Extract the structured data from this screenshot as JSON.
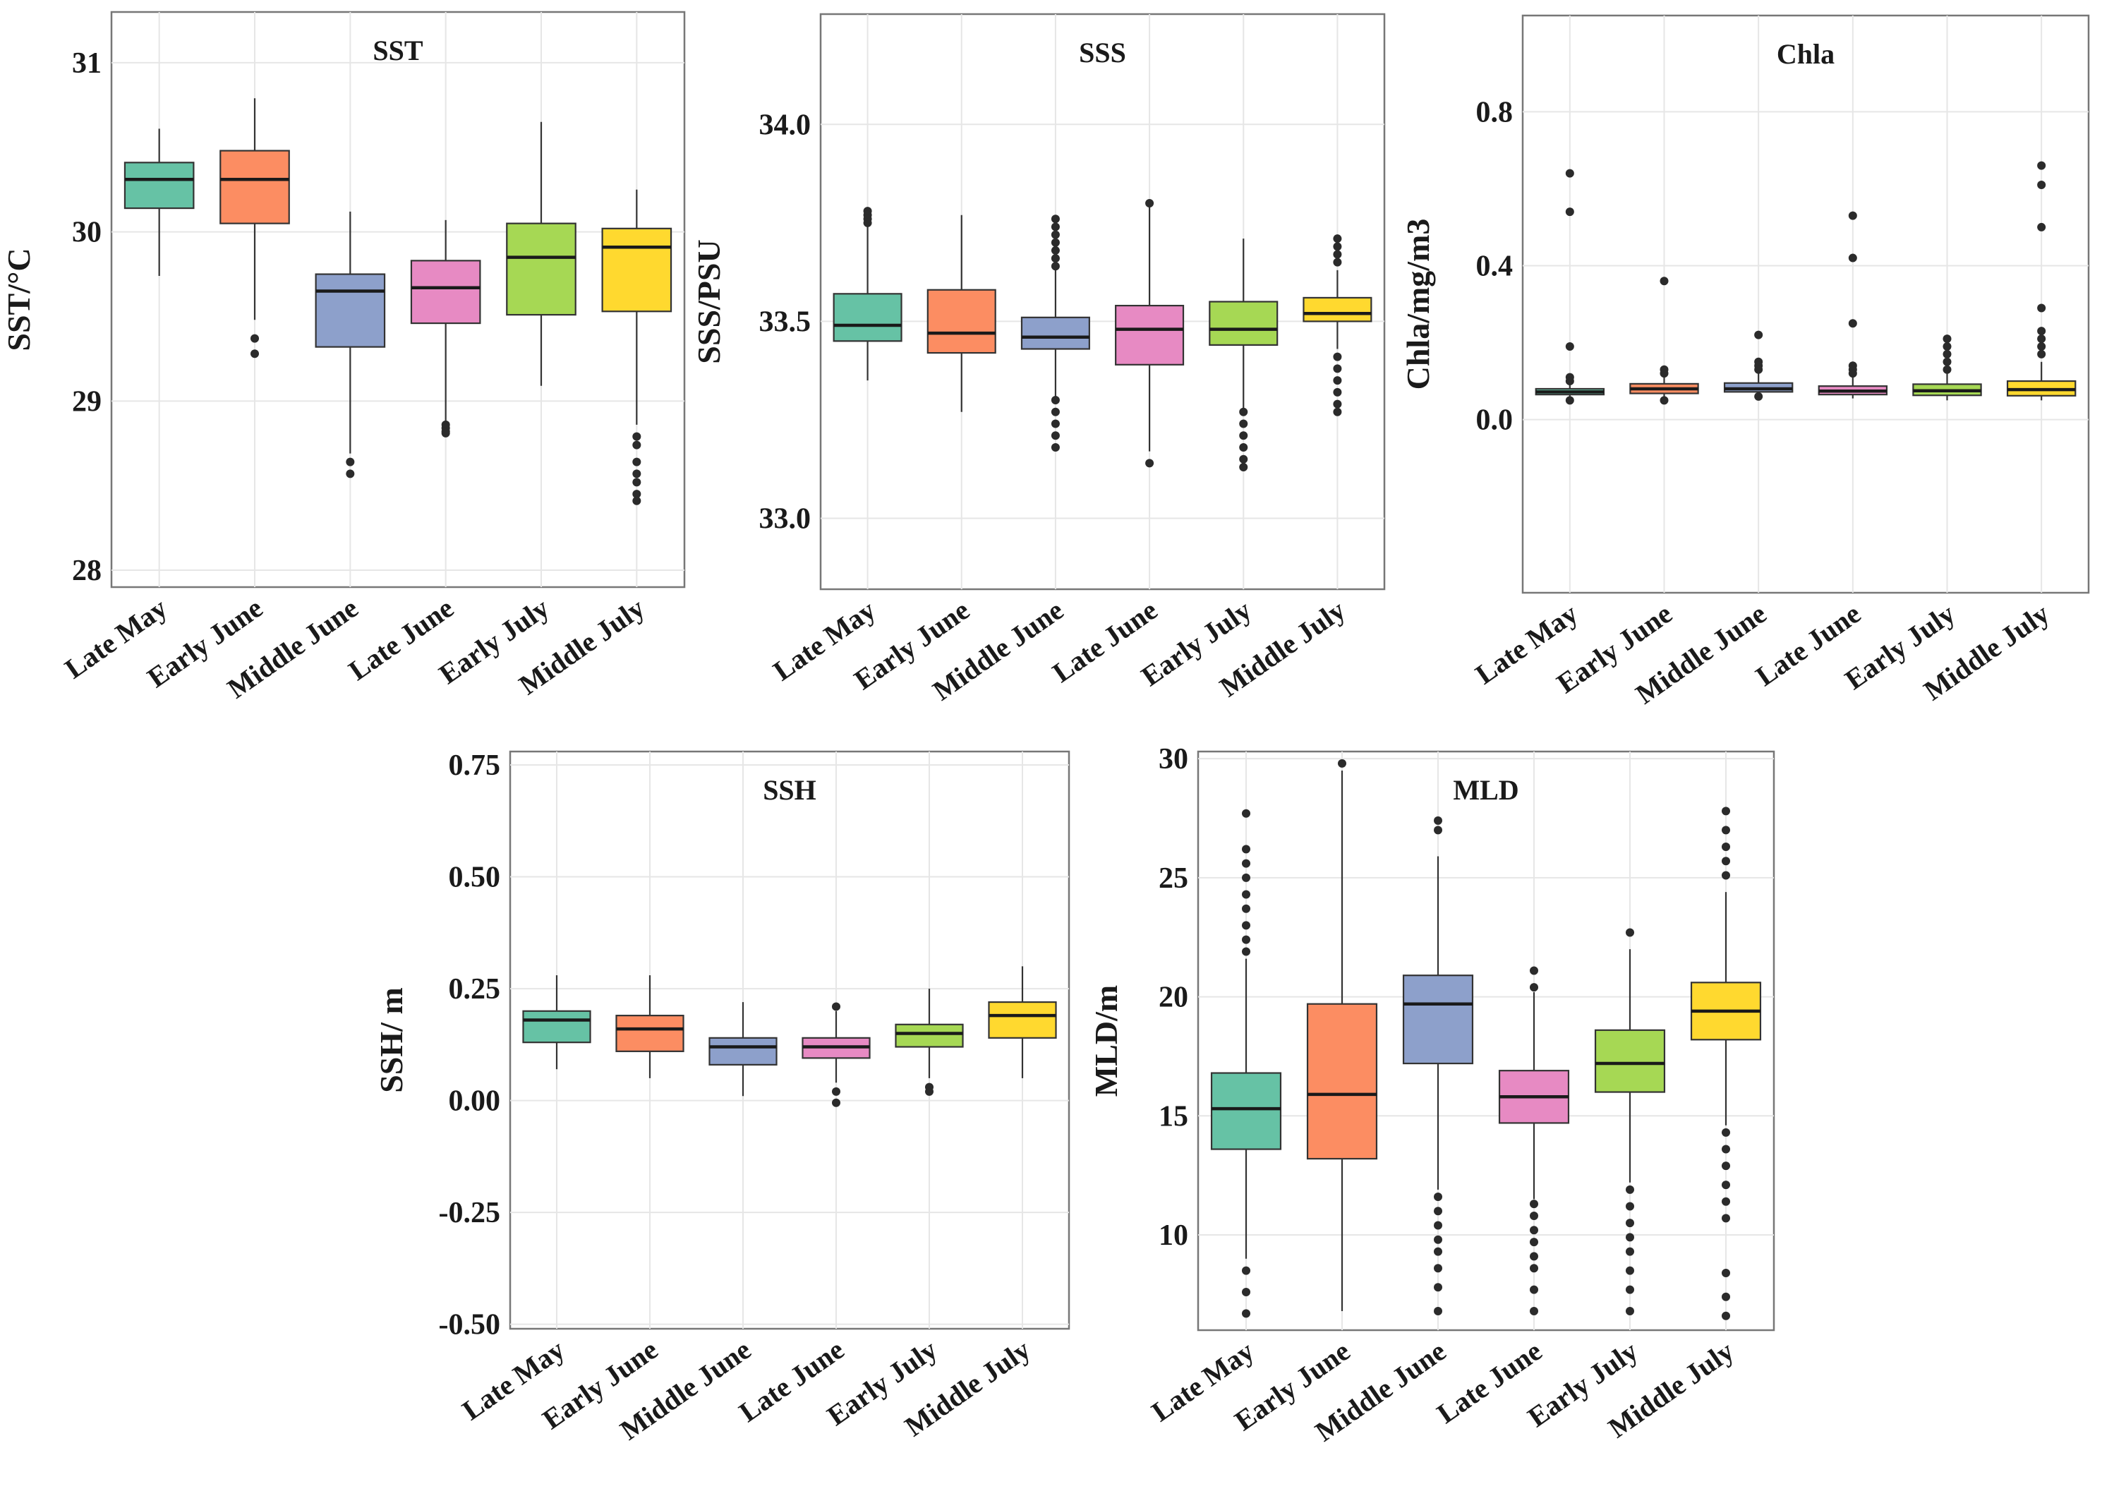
{
  "figure": {
    "categories": [
      "Late May",
      "Early June",
      "Middle June",
      "Late June",
      "Early July",
      "Middle July"
    ],
    "colors": [
      "#66c2a5",
      "#fc8d62",
      "#8da0cb",
      "#e78ac3",
      "#a6d854",
      "#ffd92f"
    ]
  },
  "chart_data": [
    {
      "type": "box",
      "title": "SST",
      "ylabel": "SST/°C",
      "xlabel": "",
      "ylim": [
        27.9,
        31.3
      ],
      "yticks": [
        28,
        29,
        30,
        31
      ],
      "ytick_labels": [
        "28",
        "29",
        "30",
        "31"
      ],
      "grid": true,
      "categories": [
        "Late May",
        "Early June",
        "Middle June",
        "Late June",
        "Early July",
        "Middle July"
      ],
      "boxes": [
        {
          "q1": 30.14,
          "median": 30.31,
          "q3": 30.41,
          "whisker_low": 29.74,
          "whisker_high": 30.61,
          "outliers": []
        },
        {
          "q1": 30.05,
          "median": 30.31,
          "q3": 30.48,
          "whisker_low": 29.48,
          "whisker_high": 30.79,
          "outliers": [
            29.37,
            29.28
          ]
        },
        {
          "q1": 29.32,
          "median": 29.65,
          "q3": 29.75,
          "whisker_low": 28.69,
          "whisker_high": 30.12,
          "outliers": [
            28.64,
            28.57
          ]
        },
        {
          "q1": 29.46,
          "median": 29.67,
          "q3": 29.83,
          "whisker_low": 28.88,
          "whisker_high": 30.07,
          "outliers": [
            28.86,
            28.84,
            28.82,
            28.81
          ]
        },
        {
          "q1": 29.51,
          "median": 29.85,
          "q3": 30.05,
          "whisker_low": 29.09,
          "whisker_high": 30.65,
          "outliers": []
        },
        {
          "q1": 29.53,
          "median": 29.91,
          "q3": 30.02,
          "whisker_low": 28.86,
          "whisker_high": 30.25,
          "outliers": [
            28.79,
            28.74,
            28.64,
            28.57,
            28.52,
            28.45,
            28.41
          ]
        }
      ]
    },
    {
      "type": "box",
      "title": "SSS",
      "ylabel": "SSS/PSU",
      "xlabel": "",
      "ylim": [
        32.82,
        34.28
      ],
      "yticks": [
        33.0,
        33.5,
        34.0
      ],
      "ytick_labels": [
        "33.0",
        "33.5",
        "34.0"
      ],
      "grid": true,
      "categories": [
        "Late May",
        "Early June",
        "Middle June",
        "Late June",
        "Early July",
        "Middle July"
      ],
      "boxes": [
        {
          "q1": 33.45,
          "median": 33.49,
          "q3": 33.57,
          "whisker_low": 33.35,
          "whisker_high": 33.74,
          "outliers": [
            33.78,
            33.77,
            33.76,
            33.75
          ]
        },
        {
          "q1": 33.42,
          "median": 33.47,
          "q3": 33.58,
          "whisker_low": 33.27,
          "whisker_high": 33.77,
          "outliers": []
        },
        {
          "q1": 33.43,
          "median": 33.46,
          "q3": 33.51,
          "whisker_low": 33.31,
          "whisker_high": 33.63,
          "outliers": [
            33.76,
            33.74,
            33.72,
            33.7,
            33.68,
            33.66,
            33.64,
            33.3,
            33.27,
            33.24,
            33.21,
            33.18
          ]
        },
        {
          "q1": 33.39,
          "median": 33.48,
          "q3": 33.54,
          "whisker_low": 33.17,
          "whisker_high": 33.79,
          "outliers": [
            33.14,
            33.8
          ]
        },
        {
          "q1": 33.44,
          "median": 33.48,
          "q3": 33.55,
          "whisker_low": 33.28,
          "whisker_high": 33.71,
          "outliers": [
            33.27,
            33.24,
            33.21,
            33.18,
            33.15,
            33.13
          ]
        },
        {
          "q1": 33.5,
          "median": 33.52,
          "q3": 33.56,
          "whisker_low": 33.43,
          "whisker_high": 33.63,
          "outliers": [
            33.71,
            33.69,
            33.67,
            33.65,
            33.41,
            33.38,
            33.35,
            33.32,
            33.29,
            33.27
          ]
        }
      ]
    },
    {
      "type": "box",
      "title": "Chla",
      "ylabel": "Chla/mg/m3",
      "xlabel": "",
      "ylim": [
        -0.45,
        1.05
      ],
      "yticks": [
        0.0,
        0.4,
        0.8
      ],
      "ytick_labels": [
        "0.0",
        "0.4",
        "0.8"
      ],
      "grid": true,
      "categories": [
        "Late May",
        "Early June",
        "Middle June",
        "Late June",
        "Early July",
        "Middle July"
      ],
      "boxes": [
        {
          "q1": 0.065,
          "median": 0.072,
          "q3": 0.08,
          "whisker_low": 0.048,
          "whisker_high": 0.09,
          "outliers": [
            0.64,
            0.54,
            0.19,
            0.11,
            0.1,
            0.05
          ]
        },
        {
          "q1": 0.068,
          "median": 0.08,
          "q3": 0.093,
          "whisker_low": 0.05,
          "whisker_high": 0.11,
          "outliers": [
            0.36,
            0.13,
            0.12,
            0.05
          ]
        },
        {
          "q1": 0.072,
          "median": 0.08,
          "q3": 0.095,
          "whisker_low": 0.055,
          "whisker_high": 0.12,
          "outliers": [
            0.22,
            0.15,
            0.14,
            0.13,
            0.06
          ]
        },
        {
          "q1": 0.065,
          "median": 0.074,
          "q3": 0.087,
          "whisker_low": 0.055,
          "whisker_high": 0.11,
          "outliers": [
            0.53,
            0.42,
            0.25,
            0.14,
            0.13,
            0.12
          ]
        },
        {
          "q1": 0.063,
          "median": 0.075,
          "q3": 0.092,
          "whisker_low": 0.05,
          "whisker_high": 0.12,
          "outliers": [
            0.21,
            0.19,
            0.17,
            0.15,
            0.13
          ]
        },
        {
          "q1": 0.062,
          "median": 0.078,
          "q3": 0.1,
          "whisker_low": 0.05,
          "whisker_high": 0.15,
          "outliers": [
            0.66,
            0.61,
            0.5,
            0.29,
            0.23,
            0.21,
            0.19,
            0.17
          ]
        }
      ]
    },
    {
      "type": "box",
      "title": "SSH",
      "ylabel": "SSH/ m",
      "xlabel": "",
      "ylim": [
        -0.51,
        0.78
      ],
      "yticks": [
        -0.5,
        -0.25,
        0.0,
        0.25,
        0.5,
        0.75
      ],
      "ytick_labels": [
        "-0.50",
        "-0.25",
        "0.00",
        "0.25",
        "0.50",
        "0.75"
      ],
      "grid": true,
      "categories": [
        "Late May",
        "Early June",
        "Middle June",
        "Late June",
        "Early July",
        "Middle July"
      ],
      "boxes": [
        {
          "q1": 0.13,
          "median": 0.18,
          "q3": 0.2,
          "whisker_low": 0.07,
          "whisker_high": 0.28,
          "outliers": []
        },
        {
          "q1": 0.11,
          "median": 0.16,
          "q3": 0.19,
          "whisker_low": 0.05,
          "whisker_high": 0.28,
          "outliers": []
        },
        {
          "q1": 0.08,
          "median": 0.12,
          "q3": 0.14,
          "whisker_low": 0.01,
          "whisker_high": 0.22,
          "outliers": []
        },
        {
          "q1": 0.095,
          "median": 0.12,
          "q3": 0.14,
          "whisker_low": 0.04,
          "whisker_high": 0.2,
          "outliers": [
            0.21,
            0.02,
            -0.005
          ]
        },
        {
          "q1": 0.12,
          "median": 0.15,
          "q3": 0.17,
          "whisker_low": 0.05,
          "whisker_high": 0.25,
          "outliers": [
            0.03,
            0.02
          ]
        },
        {
          "q1": 0.14,
          "median": 0.19,
          "q3": 0.22,
          "whisker_low": 0.05,
          "whisker_high": 0.3,
          "outliers": []
        }
      ]
    },
    {
      "type": "box",
      "title": "MLD",
      "ylabel": "MLD/m",
      "xlabel": "",
      "ylim": [
        6,
        30.3
      ],
      "yticks": [
        10,
        15,
        20,
        25,
        30
      ],
      "ytick_labels": [
        "10",
        "15",
        "20",
        "25",
        "30"
      ],
      "grid": true,
      "categories": [
        "Late May",
        "Early June",
        "Middle June",
        "Late June",
        "Early July",
        "Middle July"
      ],
      "boxes": [
        {
          "q1": 13.6,
          "median": 15.3,
          "q3": 16.8,
          "whisker_low": 9.0,
          "whisker_high": 21.6,
          "outliers": [
            27.7,
            26.2,
            25.6,
            25.0,
            24.3,
            23.7,
            23.0,
            22.4,
            21.9,
            8.5,
            7.6,
            6.7
          ]
        },
        {
          "q1": 13.2,
          "median": 15.9,
          "q3": 19.7,
          "whisker_low": 6.8,
          "whisker_high": 29.5,
          "outliers": [
            29.8
          ]
        },
        {
          "q1": 17.2,
          "median": 19.7,
          "q3": 20.9,
          "whisker_low": 11.9,
          "whisker_high": 25.9,
          "outliers": [
            27.4,
            27.0,
            11.6,
            11.0,
            10.4,
            9.8,
            9.3,
            8.6,
            7.8,
            6.8
          ]
        },
        {
          "q1": 14.7,
          "median": 15.8,
          "q3": 16.9,
          "whisker_low": 11.5,
          "whisker_high": 20.2,
          "outliers": [
            21.1,
            20.4,
            11.3,
            10.8,
            10.2,
            9.7,
            9.1,
            8.6,
            7.7,
            6.8
          ]
        },
        {
          "q1": 16.0,
          "median": 17.2,
          "q3": 18.6,
          "whisker_low": 12.2,
          "whisker_high": 22.0,
          "outliers": [
            22.7,
            11.9,
            11.2,
            10.5,
            9.9,
            9.3,
            8.5,
            7.7,
            6.8
          ]
        },
        {
          "q1": 18.2,
          "median": 19.4,
          "q3": 20.6,
          "whisker_low": 14.6,
          "whisker_high": 24.4,
          "outliers": [
            27.8,
            27.0,
            26.3,
            25.7,
            25.1,
            14.3,
            13.6,
            12.9,
            12.1,
            11.4,
            10.7,
            8.4,
            7.4,
            6.6
          ]
        }
      ]
    }
  ]
}
